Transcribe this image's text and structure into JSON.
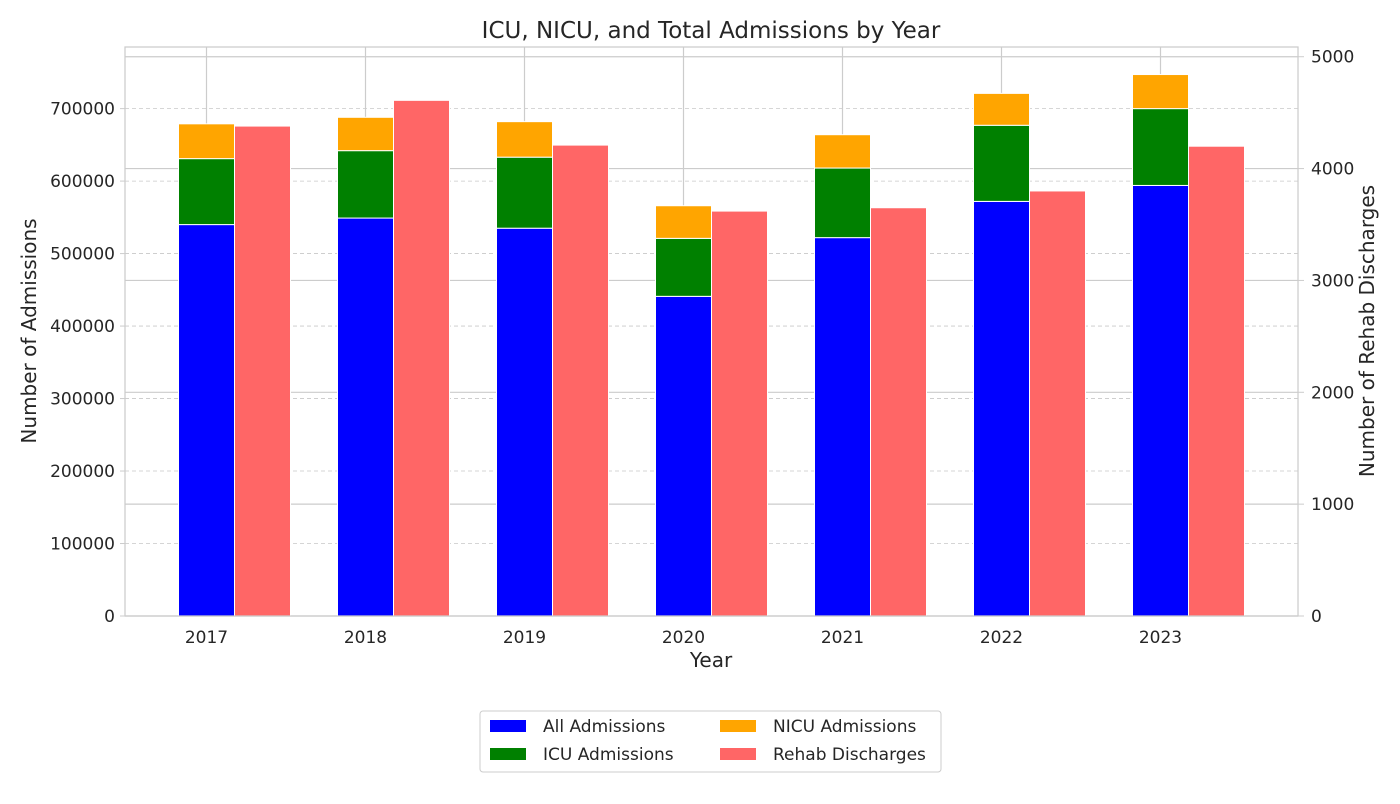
{
  "chart_data": {
    "type": "bar",
    "title": "ICU, NICU, and Total Admissions by Year",
    "xlabel": "Year",
    "ylabel": "Number of Admissions",
    "y2label": "Number of Rehab Discharges",
    "categories": [
      "2017",
      "2018",
      "2019",
      "2020",
      "2021",
      "2022",
      "2023"
    ],
    "ylim": [
      0,
      785000
    ],
    "y2lim": [
      0,
      5087
    ],
    "yticks": [
      0,
      100000,
      200000,
      300000,
      400000,
      500000,
      600000,
      700000
    ],
    "y2ticks": [
      0,
      1000,
      2000,
      3000,
      4000,
      5000
    ],
    "stacked_series": [
      {
        "name": "All Admissions",
        "color": "#0000ff",
        "values": [
          540000,
          549000,
          535000,
          441000,
          522000,
          572000,
          594000
        ]
      },
      {
        "name": "ICU Admissions",
        "color": "#008000",
        "values": [
          91000,
          93000,
          98000,
          80000,
          96000,
          105000,
          106000
        ]
      },
      {
        "name": "NICU Admissions",
        "color": "#ffa500",
        "values": [
          48000,
          46000,
          49000,
          45000,
          46000,
          44000,
          47000
        ]
      }
    ],
    "secondary_series": {
      "name": "Rehab Discharges",
      "color": "#ff6666",
      "axis": "right",
      "values": [
        4380,
        4610,
        4210,
        3620,
        3650,
        3800,
        4200
      ]
    },
    "grid": true,
    "legend_position": "bottom-center",
    "legend": [
      {
        "label": "All Admissions",
        "color": "#0000ff"
      },
      {
        "label": "NICU Admissions",
        "color": "#ffa500"
      },
      {
        "label": "ICU Admissions",
        "color": "#008000"
      },
      {
        "label": "Rehab Discharges",
        "color": "#ff6666"
      }
    ]
  }
}
